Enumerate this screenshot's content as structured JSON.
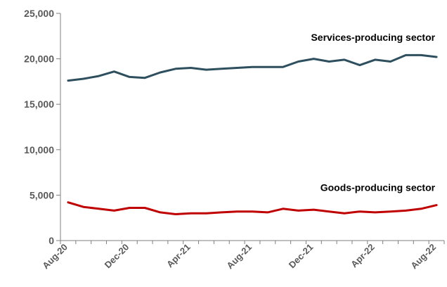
{
  "chart_data": {
    "type": "line",
    "x": [
      "Aug-20",
      "Sep-20",
      "Oct-20",
      "Nov-20",
      "Dec-20",
      "Jan-21",
      "Feb-21",
      "Mar-21",
      "Apr-21",
      "May-21",
      "Jun-21",
      "Jul-21",
      "Aug-21",
      "Sep-21",
      "Oct-21",
      "Nov-21",
      "Dec-21",
      "Jan-22",
      "Feb-22",
      "Mar-22",
      "Apr-22",
      "May-22",
      "Jun-22",
      "Jul-22",
      "Aug-22"
    ],
    "x_tick_labels": [
      "Aug-20",
      "Dec-20",
      "Apr-21",
      "Aug-21",
      "Dec-21",
      "Apr-22",
      "Aug-22"
    ],
    "y_tick_labels": [
      "0",
      "5,000",
      "10,000",
      "15,000",
      "20,000",
      "25,000"
    ],
    "ylim": [
      0,
      25000
    ],
    "grid": false,
    "series": [
      {
        "name": "Services-producing sector",
        "color": "#2e4f5e",
        "values": [
          17600,
          17800,
          18100,
          18600,
          18000,
          17900,
          18500,
          18900,
          19000,
          18800,
          18900,
          19000,
          19100,
          19100,
          19100,
          19700,
          20000,
          19700,
          19900,
          19300,
          19900,
          19700,
          20400,
          20400,
          20200
        ]
      },
      {
        "name": "Goods-producing sector",
        "color": "#c00000",
        "values": [
          4200,
          3700,
          3500,
          3300,
          3600,
          3600,
          3100,
          2900,
          3000,
          3000,
          3100,
          3200,
          3200,
          3100,
          3500,
          3300,
          3400,
          3200,
          3000,
          3200,
          3100,
          3200,
          3300,
          3500,
          3900
        ]
      }
    ]
  }
}
